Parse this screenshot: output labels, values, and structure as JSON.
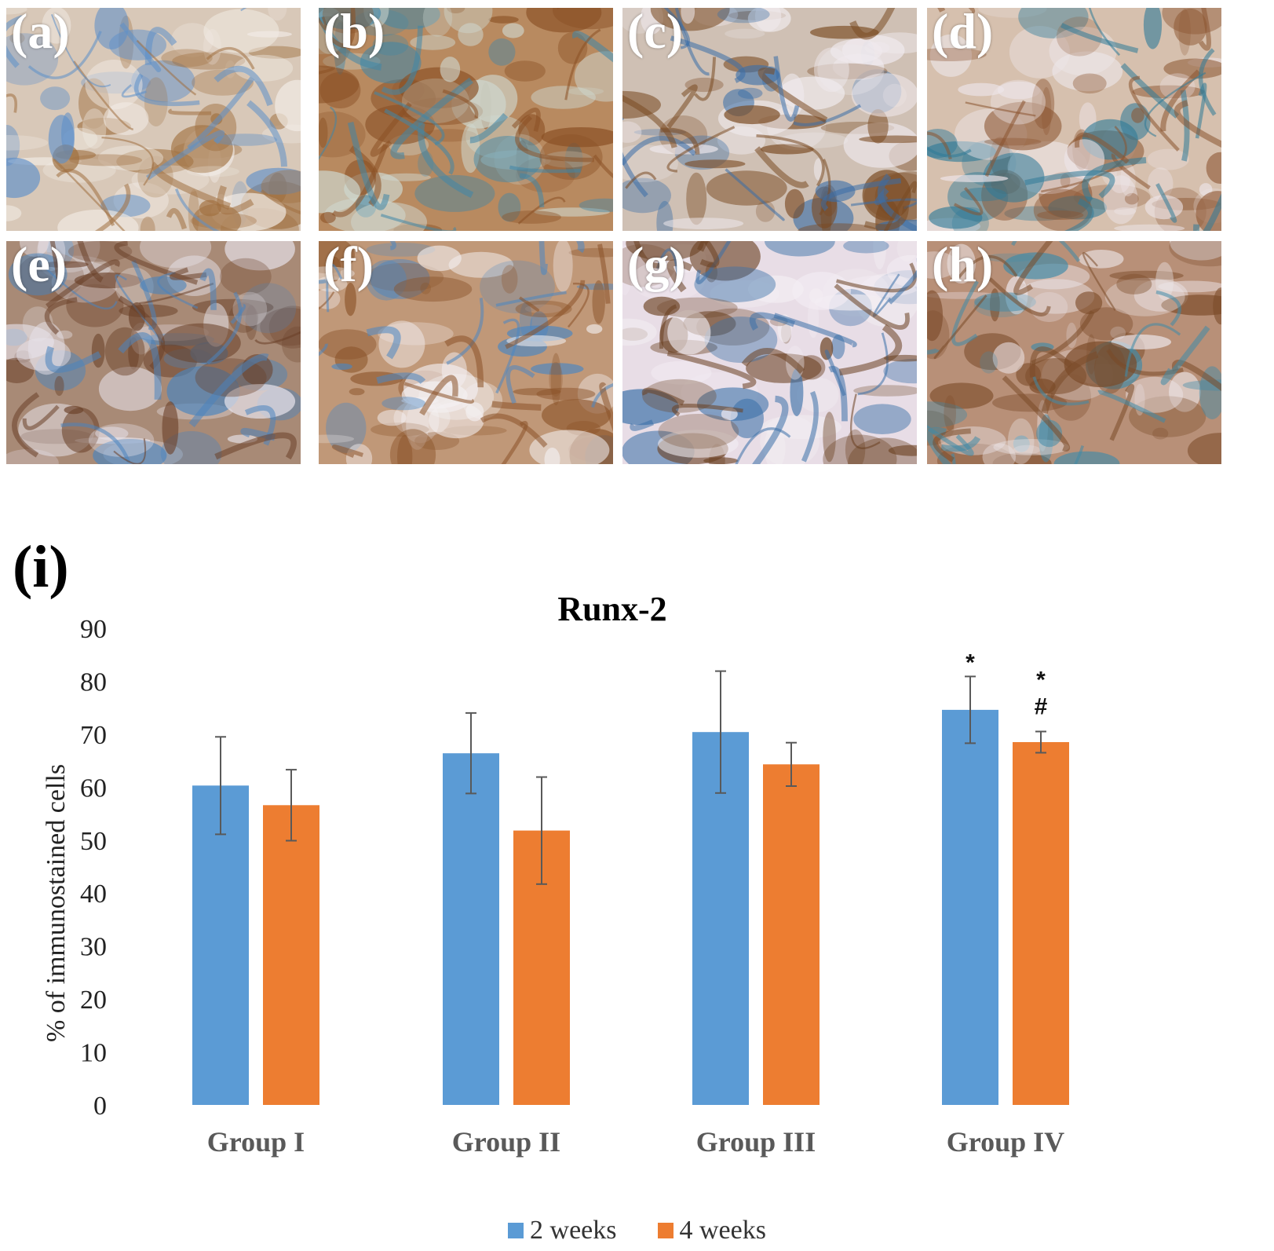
{
  "panels": [
    {
      "label": "(a)",
      "base": "#d8c8b8",
      "c1": "#5d8fc9",
      "c2": "#a07040",
      "c3": "#f2ece6"
    },
    {
      "label": "(b)",
      "base": "#b88a60",
      "c1": "#3f86a8",
      "c2": "#8a5025",
      "c3": "#cfd8d0"
    },
    {
      "label": "(c)",
      "base": "#cfc0b4",
      "c1": "#3a6ea8",
      "c2": "#7a4a22",
      "c3": "#f0eaee"
    },
    {
      "label": "(d)",
      "base": "#d6c0ae",
      "c1": "#2f7a98",
      "c2": "#8b5430",
      "c3": "#eee6ea"
    },
    {
      "label": "(e)",
      "base": "#a88a76",
      "c1": "#4a84bd",
      "c2": "#6a4028",
      "c3": "#e8e4ec"
    },
    {
      "label": "(f)",
      "base": "#c09878",
      "c1": "#4a86c2",
      "c2": "#8a5228",
      "c3": "#f4f0f2"
    },
    {
      "label": "(g)",
      "base": "#e8dde6",
      "c1": "#3a70a8",
      "c2": "#6a4020",
      "c3": "#f3eef3"
    },
    {
      "label": "(h)",
      "base": "#b89078",
      "c1": "#3f8aa8",
      "c2": "#7a4a28",
      "c3": "#ede6ea"
    }
  ],
  "chart_label": "(i)",
  "chart_data": {
    "type": "bar",
    "title": "Runx-2",
    "ylabel": "% of immunostained cells",
    "xlabel": "",
    "ylim": [
      0,
      90
    ],
    "yticks": [
      0,
      10,
      20,
      30,
      40,
      50,
      60,
      70,
      80,
      90
    ],
    "categories": [
      "Group I",
      "Group II",
      "Group III",
      "Group IV"
    ],
    "series": [
      {
        "name": "2 weeks",
        "color": "#5b9bd5",
        "values": [
          60.3,
          66.4,
          70.4,
          74.6
        ],
        "errors": [
          9.2,
          7.6,
          11.5,
          6.3
        ]
      },
      {
        "name": "4 weeks",
        "color": "#ed7d31",
        "values": [
          56.6,
          51.8,
          64.3,
          68.5
        ],
        "errors": [
          6.7,
          10.1,
          4.1,
          2.0
        ]
      }
    ],
    "annotations": [
      {
        "category": "Group IV",
        "series": "2 weeks",
        "marks": [
          "*"
        ]
      },
      {
        "category": "Group IV",
        "series": "4 weeks",
        "marks": [
          "*",
          "#"
        ]
      }
    ],
    "legend_position": "bottom-center",
    "grid": false
  }
}
